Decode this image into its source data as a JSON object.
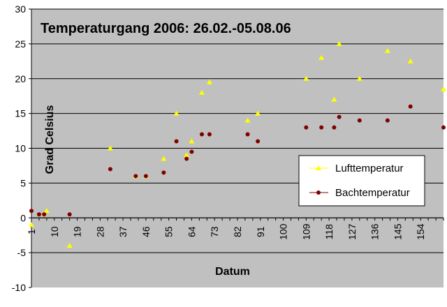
{
  "chart_data": {
    "type": "scatter",
    "title": "Temperaturgang 2006: 26.02.-05.08.06",
    "xlabel": "Datum",
    "ylabel": "Grad Celsius",
    "ylim": [
      -10,
      30
    ],
    "yticks": [
      -10,
      -5,
      0,
      5,
      10,
      15,
      20,
      25,
      30
    ],
    "xlim": [
      1,
      163
    ],
    "xticks": [
      1,
      10,
      19,
      28,
      37,
      46,
      55,
      64,
      73,
      82,
      91,
      100,
      109,
      118,
      127,
      136,
      145,
      154
    ],
    "grid": true,
    "legend": "right",
    "plot_background": "#c0c0c0",
    "series": [
      {
        "name": "Lufttemperatur",
        "marker": "triangle",
        "color": "#ffff00",
        "x": [
          1,
          6,
          7,
          16,
          32,
          42,
          46,
          53,
          58,
          62,
          64,
          68,
          71,
          86,
          90,
          109,
          115,
          120,
          122,
          130,
          141,
          150,
          163
        ],
        "y": [
          -1,
          0.5,
          1,
          -4,
          10,
          6,
          6,
          8.5,
          15,
          9,
          11,
          18,
          19.5,
          14,
          15,
          20,
          23,
          17,
          25,
          20,
          24,
          22.5,
          18.5
        ]
      },
      {
        "name": "Bachtemperatur",
        "marker": "circle",
        "color": "#800000",
        "x": [
          1,
          4,
          6,
          16,
          32,
          42,
          46,
          53,
          58,
          62,
          64,
          68,
          71,
          86,
          90,
          109,
          115,
          120,
          122,
          130,
          141,
          150,
          163
        ],
        "y": [
          1,
          0.5,
          0.5,
          0.5,
          7,
          6,
          6,
          6.5,
          11,
          8.5,
          9.5,
          12,
          12,
          12,
          11,
          13,
          13,
          13,
          14.5,
          14,
          14,
          16,
          13
        ]
      }
    ]
  }
}
